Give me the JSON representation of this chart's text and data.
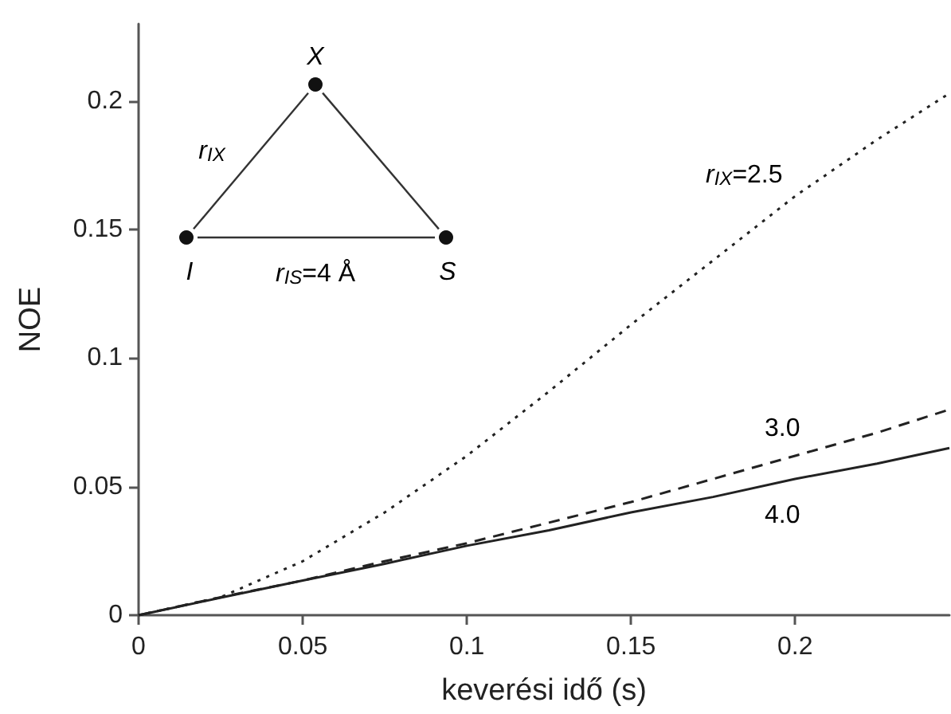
{
  "chart_data": {
    "type": "line",
    "xlabel": "keverési idő (s)",
    "ylabel": "NOE",
    "x": [
      0,
      0.025,
      0.05,
      0.075,
      0.1,
      0.125,
      0.15,
      0.175,
      0.2,
      0.225,
      0.247
    ],
    "series": [
      {
        "name": "r$_{IX}$=2.5",
        "color": "#222222",
        "line_style": "dotted",
        "values": [
          0,
          0.007,
          0.021,
          0.04,
          0.062,
          0.087,
          0.113,
          0.138,
          0.163,
          0.185,
          0.203
        ]
      },
      {
        "name": "3.0",
        "color": "#222222",
        "line_style": "dashed",
        "values": [
          0,
          0.007,
          0.0135,
          0.021,
          0.028,
          0.036,
          0.044,
          0.053,
          0.062,
          0.071,
          0.08
        ]
      },
      {
        "name": "4.0",
        "color": "#222222",
        "line_style": "solid",
        "values": [
          0,
          0.0068,
          0.0135,
          0.02,
          0.027,
          0.033,
          0.04,
          0.046,
          0.053,
          0.059,
          0.065
        ]
      }
    ],
    "xlim": [
      0,
      0.247
    ],
    "xticks": [
      0,
      0.05,
      0.1,
      0.15,
      0.2
    ],
    "ylim": [
      0,
      0.23
    ],
    "yticks": [
      0,
      0.05,
      0.1,
      0.15,
      0.2
    ],
    "grid": false,
    "marker": "none",
    "annotations": [
      "X",
      "I",
      "S",
      "r$_{IX}$",
      "r$_{IS}$=4 Å"
    ]
  }
}
